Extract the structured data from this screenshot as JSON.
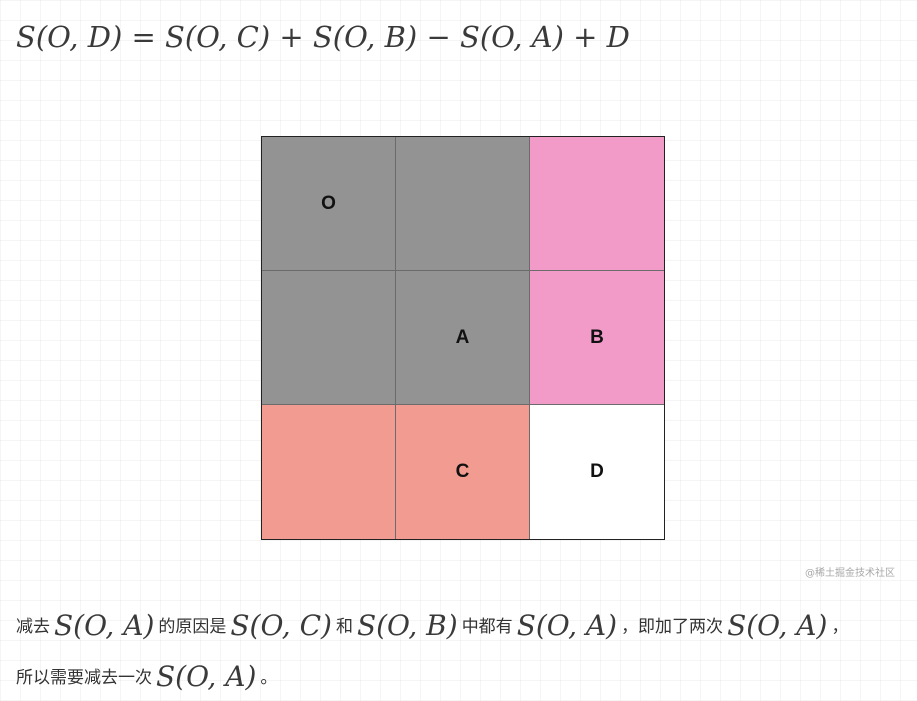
{
  "formula": "S(O, D) = S(O, C) + S(O, B) − S(O, A) + D",
  "grid": {
    "cells": [
      {
        "label": "O",
        "color": "#939393"
      },
      {
        "label": "",
        "color": "#939393"
      },
      {
        "label": "",
        "color": "#f29bc8"
      },
      {
        "label": "",
        "color": "#939393"
      },
      {
        "label": "A",
        "color": "#939393"
      },
      {
        "label": "B",
        "color": "#f29bc8"
      },
      {
        "label": "",
        "color": "#f29b91"
      },
      {
        "label": "C",
        "color": "#f29b91"
      },
      {
        "label": "D",
        "color": "#ffffff"
      }
    ]
  },
  "watermark": "@稀土掘金技术社区",
  "paragraph": {
    "line1": {
      "t1": "减去",
      "m1": "S(O, A)",
      "t2": "的原因是",
      "m2": "S(O, C)",
      "t3": "和",
      "m3": "S(O, B)",
      "t4": "中都有",
      "m4": "S(O, A)",
      "t5": "，即加了两次",
      "m5": "S(O, A)",
      "t6": "，"
    },
    "line2": {
      "t1": "所以需要减去一次",
      "m1": "S(O, A)",
      "t2": "。"
    }
  }
}
